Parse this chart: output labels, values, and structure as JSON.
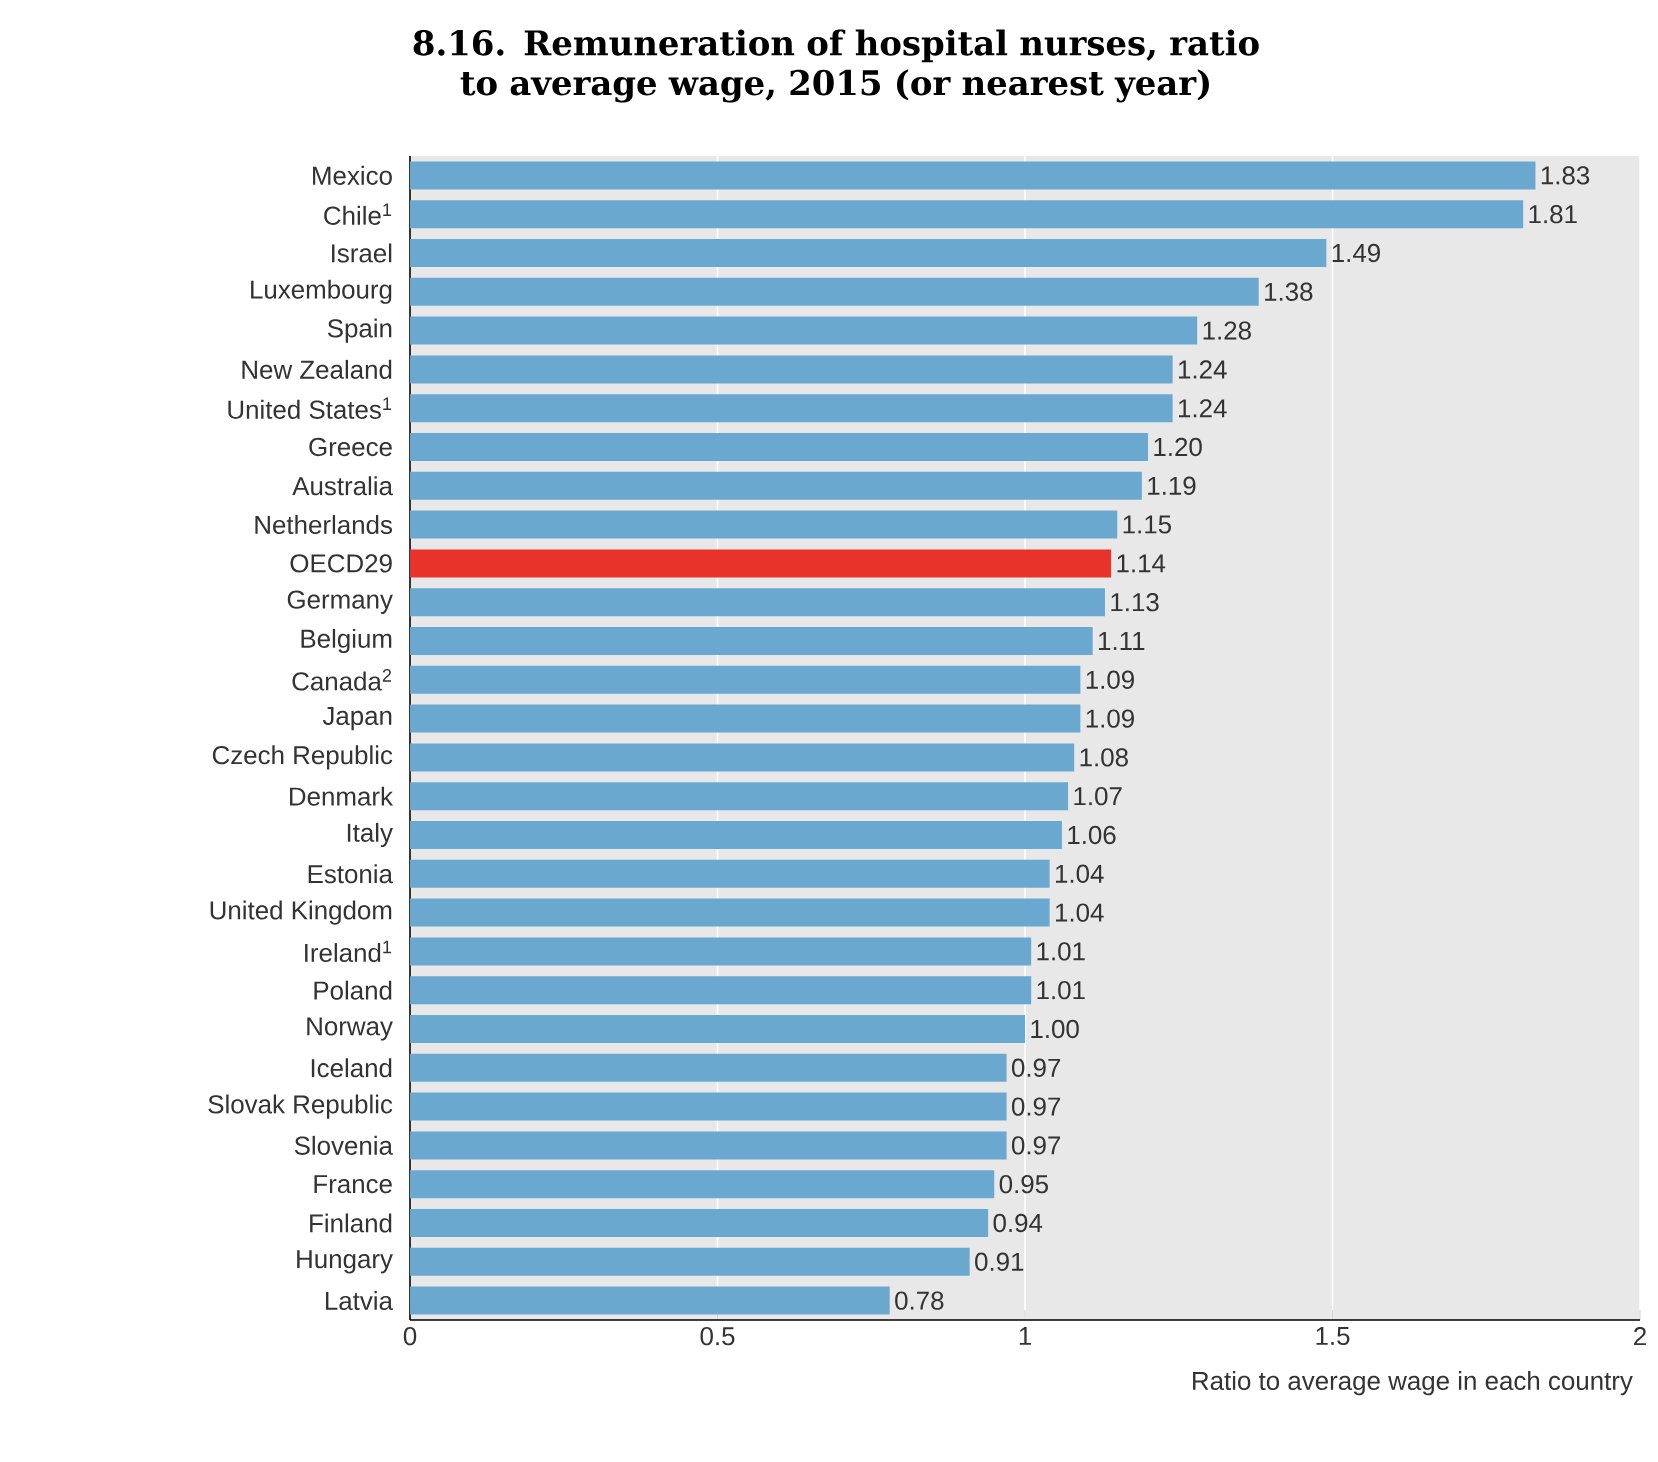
{
  "chart_data": {
    "type": "bar",
    "orientation": "horizontal",
    "title": "8.16. Remuneration of hospital nurses, ratio to average wage, 2015 (or nearest year)",
    "xlabel": "Ratio to average wage in each country",
    "categories": [
      "Mexico",
      "Chile$^{1}$",
      "Israel",
      "Luxembourg",
      "Spain",
      "New Zealand",
      "United States$^{1}$",
      "Greece",
      "Australia",
      "Netherlands",
      "OECD29",
      "Germany",
      "Belgium",
      "Canada$^{2}$",
      "Japan",
      "Czech Republic",
      "Denmark",
      "Italy",
      "Estonia",
      "United Kingdom",
      "Ireland$^{1}$",
      "Poland",
      "Norway",
      "Iceland",
      "Slovak Republic",
      "Slovenia",
      "France",
      "Finland",
      "Hungary",
      "Latvia"
    ],
    "values": [
      1.83,
      1.81,
      1.49,
      1.38,
      1.28,
      1.24,
      1.24,
      1.2,
      1.19,
      1.15,
      1.14,
      1.13,
      1.11,
      1.09,
      1.09,
      1.08,
      1.07,
      1.06,
      1.04,
      1.04,
      1.01,
      1.01,
      1.0,
      0.97,
      0.97,
      0.97,
      0.95,
      0.94,
      0.91,
      0.78
    ],
    "value_labels": [
      "1.83",
      "1.81",
      "1.49",
      "1.38",
      "1.28",
      "1.24",
      "1.24",
      "1.20",
      "1.19",
      "1.15",
      "1.14",
      "1.13",
      "1.11",
      "1.09",
      "1.09",
      "1.08",
      "1.07",
      "1.06",
      "1.04",
      "1.04",
      "1.01",
      "1.01",
      "1.00",
      "0.97",
      "0.97",
      "0.97",
      "0.95",
      "0.94",
      "0.91",
      "0.78"
    ],
    "colors": [
      "#6aa8d0",
      "#6aa8d0",
      "#6aa8d0",
      "#6aa8d0",
      "#6aa8d0",
      "#6aa8d0",
      "#6aa8d0",
      "#6aa8d0",
      "#6aa8d0",
      "#6aa8d0",
      "#e8332a",
      "#6aa8d0",
      "#6aa8d0",
      "#6aa8d0",
      "#6aa8d0",
      "#6aa8d0",
      "#6aa8d0",
      "#6aa8d0",
      "#6aa8d0",
      "#6aa8d0",
      "#6aa8d0",
      "#6aa8d0",
      "#6aa8d0",
      "#6aa8d0",
      "#6aa8d0",
      "#6aa8d0",
      "#6aa8d0",
      "#6aa8d0",
      "#6aa8d0",
      "#6aa8d0"
    ],
    "xlim": [
      0,
      2
    ],
    "xticks": [
      0,
      0.5,
      1,
      1.5,
      2
    ],
    "grid": "x"
  }
}
